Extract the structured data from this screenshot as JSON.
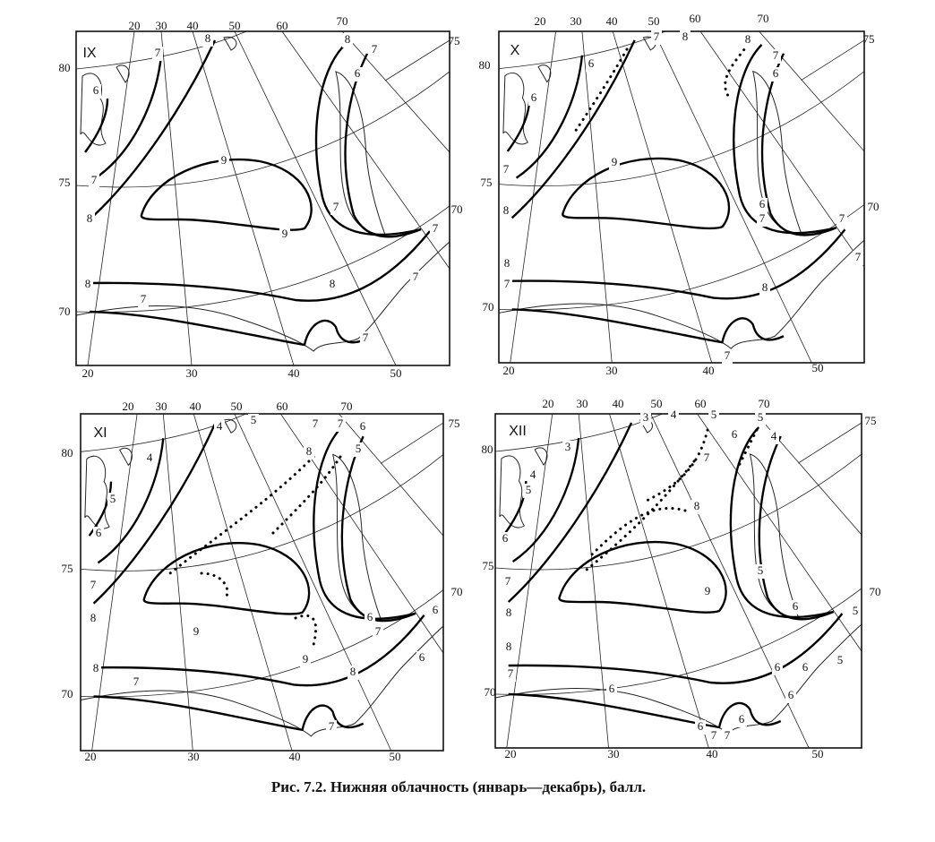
{
  "caption": "Рис. 7.2. Нижняя облачность (январь—декабрь), балл.",
  "panels": [
    {
      "title": "IX",
      "top_labels": [
        "20",
        "30",
        "40",
        "50",
        "60",
        "70"
      ],
      "right_labels": [
        "75",
        "70"
      ],
      "left_labels": [
        "80",
        "75",
        "70"
      ],
      "bottom_labels": [
        "20",
        "30",
        "40",
        "50"
      ],
      "isoline_labels": [
        "8",
        "7",
        "8",
        "7",
        "6",
        "6",
        "7",
        "8",
        "9",
        "9",
        "7",
        "7",
        "8",
        "7",
        "8",
        "7",
        "7"
      ]
    },
    {
      "title": "X",
      "top_labels": [
        "20",
        "30",
        "40",
        "50",
        "60",
        "70"
      ],
      "right_labels": [
        "75",
        "70"
      ],
      "left_labels": [
        "80",
        "75",
        "70"
      ],
      "bottom_labels": [
        "20",
        "30",
        "40",
        "50"
      ],
      "isoline_labels": [
        "7",
        "8",
        "8",
        "6",
        "7",
        "6",
        "6",
        "7",
        "8",
        "9",
        "6",
        "7",
        "7",
        "7",
        "8",
        "7",
        "8",
        "7"
      ]
    },
    {
      "title": "XI",
      "top_labels": [
        "20",
        "30",
        "40",
        "50",
        "60",
        "70"
      ],
      "right_labels": [
        "75",
        "70"
      ],
      "left_labels": [
        "80",
        "75",
        "70"
      ],
      "bottom_labels": [
        "20",
        "30",
        "40",
        "50"
      ],
      "isoline_labels": [
        "4",
        "5",
        "7",
        "7",
        "6",
        "4",
        "8",
        "5",
        "5",
        "6",
        "7",
        "8",
        "9",
        "9",
        "6",
        "7",
        "6",
        "6",
        "8",
        "7",
        "8",
        "7"
      ]
    },
    {
      "title": "XII",
      "top_labels": [
        "20",
        "30",
        "40",
        "50",
        "60",
        "70"
      ],
      "right_labels": [
        "75",
        "70"
      ],
      "left_labels": [
        "80",
        "75",
        "70"
      ],
      "bottom_labels": [
        "20",
        "30",
        "40",
        "50"
      ],
      "isoline_labels": [
        "3",
        "4",
        "5",
        "5",
        "3",
        "6",
        "4",
        "4",
        "5",
        "7",
        "6",
        "8",
        "7",
        "5",
        "9",
        "6",
        "5",
        "8",
        "8",
        "7",
        "6",
        "6",
        "6",
        "5",
        "6",
        "6",
        "7",
        "7",
        "6"
      ]
    }
  ]
}
